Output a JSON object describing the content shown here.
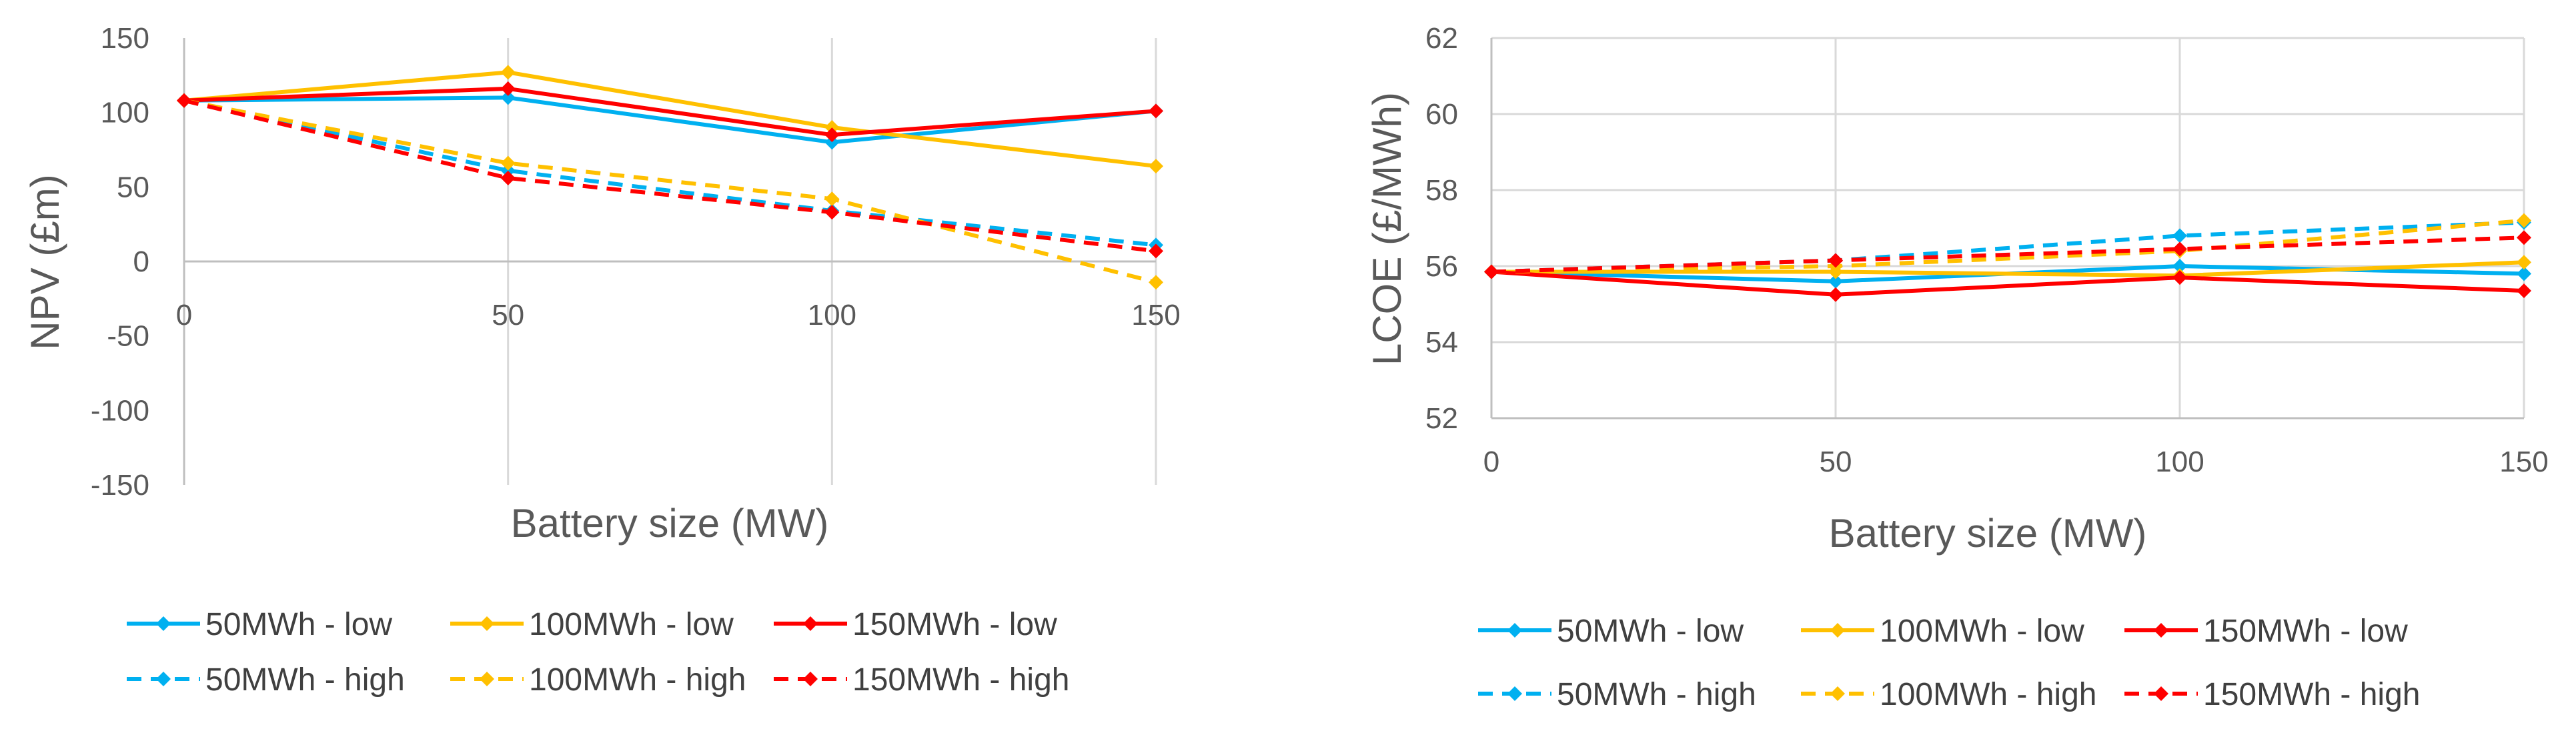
{
  "chart_data": [
    {
      "type": "line",
      "title": "",
      "xlabel": "Battery size (MW)",
      "ylabel": "NPV (£m)",
      "x": [
        0,
        50,
        100,
        150
      ],
      "xlim": [
        0,
        150
      ],
      "ylim": [
        -150,
        150
      ],
      "yticks": [
        -150,
        -100,
        -50,
        0,
        50,
        100,
        150
      ],
      "xticks": [
        0,
        50,
        100,
        150
      ],
      "grid": "vertical",
      "legend_position": "bottom",
      "series": [
        {
          "name": "50MWh - low",
          "values": [
            108,
            110,
            80,
            101
          ],
          "color": "#00B0F0",
          "dash": "solid"
        },
        {
          "name": "100MWh - low",
          "values": [
            108,
            127,
            90,
            64
          ],
          "color": "#FFC000",
          "dash": "solid"
        },
        {
          "name": "150MWh - low",
          "values": [
            108,
            116,
            85,
            101
          ],
          "color": "#FF0000",
          "dash": "solid"
        },
        {
          "name": "50MWh - high",
          "values": [
            108,
            61,
            34,
            11
          ],
          "color": "#00B0F0",
          "dash": "dashed"
        },
        {
          "name": "100MWh - high",
          "values": [
            108,
            66,
            42,
            -14
          ],
          "color": "#FFC000",
          "dash": "dashed"
        },
        {
          "name": "150MWh - high",
          "values": [
            108,
            56,
            33,
            7
          ],
          "color": "#FF0000",
          "dash": "dashed"
        }
      ]
    },
    {
      "type": "line",
      "title": "",
      "xlabel": "Battery size (MW)",
      "ylabel": "LCOE (£/MWh)",
      "x": [
        0,
        50,
        100,
        150
      ],
      "xlim": [
        0,
        150
      ],
      "ylim": [
        52,
        62
      ],
      "yticks": [
        52,
        54,
        56,
        58,
        60,
        62
      ],
      "xticks": [
        0,
        50,
        100,
        150
      ],
      "grid": "both",
      "legend_position": "bottom",
      "series": [
        {
          "name": "50MWh - low",
          "values": [
            55.85,
            55.6,
            56.0,
            55.8
          ],
          "color": "#00B0F0",
          "dash": "solid"
        },
        {
          "name": "100MWh - low",
          "values": [
            55.85,
            55.85,
            55.75,
            56.1
          ],
          "color": "#FFC000",
          "dash": "solid"
        },
        {
          "name": "150MWh - low",
          "values": [
            55.85,
            55.25,
            55.7,
            55.35
          ],
          "color": "#FF0000",
          "dash": "solid"
        },
        {
          "name": "50MWh - high",
          "values": [
            55.85,
            56.15,
            56.8,
            57.15
          ],
          "color": "#00B0F0",
          "dash": "dashed"
        },
        {
          "name": "100MWh - high",
          "values": [
            55.85,
            56.0,
            56.4,
            57.2
          ],
          "color": "#FFC000",
          "dash": "dashed"
        },
        {
          "name": "150MWh - high",
          "values": [
            55.85,
            56.15,
            56.45,
            56.75
          ],
          "color": "#FF0000",
          "dash": "dashed"
        }
      ]
    }
  ]
}
